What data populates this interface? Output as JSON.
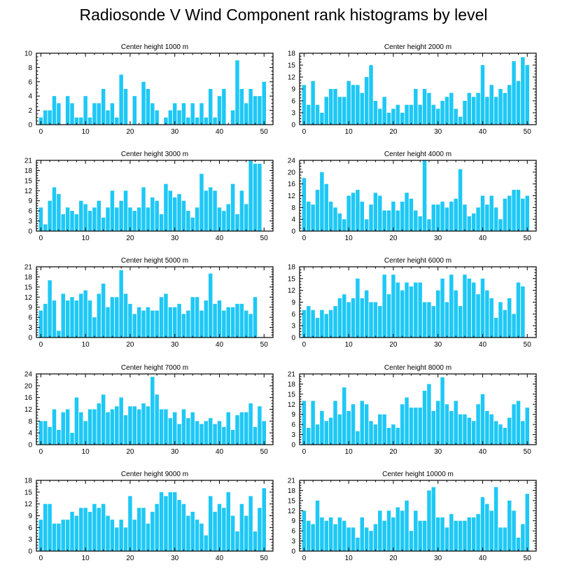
{
  "figure": {
    "title": "Radiosonde V Wind Component rank histograms by level",
    "bar_color": "#1ec8f5",
    "outline_color": "#000000"
  },
  "chart_data": [
    {
      "type": "bar",
      "title": "Center height 1000 m",
      "xlim": [
        -1,
        52
      ],
      "ylim": [
        0,
        10
      ],
      "yticks": [
        0,
        2,
        4,
        6,
        8,
        10
      ],
      "xticks": [
        0,
        10,
        20,
        30,
        40,
        50
      ],
      "values": [
        1,
        2,
        2,
        4,
        3,
        0,
        4,
        3,
        1,
        1,
        4,
        1,
        3,
        3,
        5,
        2,
        3,
        1,
        7,
        5,
        0,
        4,
        0,
        6,
        5,
        3,
        2,
        0,
        1,
        2,
        3,
        2,
        3,
        1,
        3,
        1,
        3,
        1,
        5,
        1,
        4,
        5,
        0,
        2,
        9,
        5,
        3,
        5,
        4,
        4,
        6
      ]
    },
    {
      "type": "bar",
      "title": "Center height 2000 m",
      "xlim": [
        -1,
        52
      ],
      "ylim": [
        0,
        18
      ],
      "yticks": [
        0,
        3,
        6,
        9,
        12,
        15,
        18
      ],
      "xticks": [
        0,
        10,
        20,
        30,
        40,
        50
      ],
      "values": [
        10,
        5,
        11,
        5,
        3,
        7,
        9,
        9,
        7,
        7,
        11,
        10,
        10,
        8,
        12,
        15,
        6,
        4,
        7,
        3,
        4,
        5,
        3,
        5,
        5,
        9,
        5,
        9,
        8,
        5,
        4,
        6,
        7,
        8,
        4,
        2,
        6,
        8,
        7,
        8,
        15,
        7,
        10,
        7,
        9,
        8,
        10,
        16,
        11,
        17,
        15
      ]
    },
    {
      "type": "bar",
      "title": "Center height 3000 m",
      "xlim": [
        -1,
        52
      ],
      "ylim": [
        0,
        21
      ],
      "yticks": [
        0,
        3,
        6,
        9,
        12,
        15,
        18,
        21
      ],
      "xticks": [
        0,
        10,
        20,
        30,
        40,
        50
      ],
      "values": [
        7,
        2,
        9,
        13,
        11,
        5,
        7,
        6,
        5,
        9,
        8,
        6,
        7,
        9,
        4,
        7,
        12,
        7,
        9,
        12,
        7,
        6,
        7,
        13,
        7,
        10,
        9,
        5,
        14,
        12,
        10,
        11,
        9,
        6,
        4,
        7,
        17,
        12,
        13,
        12,
        7,
        6,
        8,
        14,
        5,
        12,
        8,
        21,
        20,
        20,
        0
      ]
    },
    {
      "type": "bar",
      "title": "Center height 4000 m",
      "xlim": [
        -1,
        52
      ],
      "ylim": [
        0,
        24
      ],
      "yticks": [
        0,
        4,
        8,
        12,
        16,
        20,
        24
      ],
      "xticks": [
        0,
        10,
        20,
        30,
        40,
        50
      ],
      "values": [
        18,
        10,
        9,
        14,
        20,
        16,
        10,
        8,
        6,
        4,
        12,
        13,
        14,
        10,
        4,
        9,
        13,
        12,
        7,
        7,
        10,
        7,
        10,
        13,
        11,
        7,
        5,
        24,
        4,
        9,
        9,
        10,
        8,
        10,
        11,
        21,
        9,
        5,
        6,
        8,
        12,
        9,
        12,
        8,
        4,
        11,
        12,
        14,
        14,
        11,
        12
      ]
    },
    {
      "type": "bar",
      "title": "Center height 5000 m",
      "xlim": [
        -1,
        52
      ],
      "ylim": [
        0,
        21
      ],
      "yticks": [
        0,
        3,
        6,
        9,
        12,
        15,
        18,
        21
      ],
      "xticks": [
        0,
        10,
        20,
        30,
        40,
        50
      ],
      "values": [
        8,
        10,
        17,
        11,
        2,
        13,
        11,
        12,
        11,
        13,
        14,
        11,
        6,
        13,
        16,
        9,
        12,
        12,
        20,
        13,
        10,
        7,
        9,
        8,
        9,
        8,
        8,
        12,
        13,
        9,
        9,
        10,
        7,
        8,
        12,
        12,
        8,
        11,
        19,
        10,
        11,
        8,
        9,
        9,
        10,
        10,
        8,
        7,
        12,
        0,
        0
      ]
    },
    {
      "type": "bar",
      "title": "Center height 6000 m",
      "xlim": [
        -1,
        52
      ],
      "ylim": [
        0,
        18
      ],
      "yticks": [
        0,
        3,
        6,
        9,
        12,
        15,
        18
      ],
      "xticks": [
        0,
        10,
        20,
        30,
        40,
        50
      ],
      "values": [
        7,
        8,
        7,
        5,
        7,
        6,
        7,
        8,
        10,
        11,
        9,
        10,
        15,
        10,
        12,
        9,
        9,
        8,
        16,
        11,
        16,
        14,
        12,
        14,
        13,
        14,
        14,
        9,
        9,
        8,
        12,
        15,
        9,
        16,
        12,
        8,
        16,
        15,
        14,
        11,
        15,
        12,
        10,
        5,
        9,
        7,
        10,
        6,
        14,
        13,
        0
      ]
    },
    {
      "type": "bar",
      "title": "Center height 7000 m",
      "xlim": [
        -1,
        52
      ],
      "ylim": [
        0,
        24
      ],
      "yticks": [
        0,
        4,
        8,
        12,
        16,
        20,
        24
      ],
      "xticks": [
        0,
        10,
        20,
        30,
        40,
        50
      ],
      "values": [
        8,
        8,
        6,
        12,
        5,
        11,
        12,
        4,
        16,
        11,
        8,
        12,
        12,
        14,
        17,
        11,
        12,
        13,
        16,
        10,
        13,
        13,
        12,
        14,
        13,
        23,
        17,
        12,
        12,
        9,
        11,
        7,
        12,
        9,
        11,
        8,
        7,
        8,
        9,
        7,
        8,
        6,
        11,
        5,
        10,
        11,
        11,
        14,
        6,
        13,
        8
      ]
    },
    {
      "type": "bar",
      "title": "Center height 8000 m",
      "xlim": [
        -1,
        52
      ],
      "ylim": [
        0,
        21
      ],
      "yticks": [
        0,
        3,
        6,
        9,
        12,
        15,
        18,
        21
      ],
      "xticks": [
        0,
        10,
        20,
        30,
        40,
        50
      ],
      "values": [
        13,
        5,
        13,
        6,
        10,
        7,
        8,
        13,
        9,
        17,
        10,
        12,
        4,
        13,
        12,
        7,
        6,
        9,
        9,
        5,
        6,
        5,
        12,
        14,
        11,
        11,
        11,
        16,
        18,
        10,
        13,
        20,
        12,
        10,
        13,
        9,
        9,
        8,
        7,
        12,
        15,
        10,
        9,
        7,
        6,
        5,
        8,
        12,
        13,
        7,
        11
      ]
    },
    {
      "type": "bar",
      "title": "Center height 9000 m",
      "xlim": [
        -1,
        52
      ],
      "ylim": [
        0,
        18
      ],
      "yticks": [
        0,
        3,
        6,
        9,
        12,
        15,
        18
      ],
      "xticks": [
        0,
        10,
        20,
        30,
        40,
        50
      ],
      "values": [
        8,
        12,
        12,
        7,
        7,
        8,
        8,
        10,
        9,
        11,
        11,
        10,
        12,
        11,
        12,
        9,
        8,
        6,
        8,
        6,
        14,
        8,
        11,
        11,
        7,
        10,
        12,
        15,
        14,
        15,
        15,
        13,
        12,
        9,
        10,
        8,
        7,
        4,
        14,
        10,
        12,
        11,
        15,
        9,
        5,
        12,
        9,
        14,
        5,
        11,
        16
      ]
    },
    {
      "type": "bar",
      "title": "Center height 10000 m",
      "xlim": [
        -1,
        52
      ],
      "ylim": [
        0,
        21
      ],
      "yticks": [
        0,
        3,
        6,
        9,
        12,
        15,
        18,
        21
      ],
      "xticks": [
        0,
        10,
        20,
        30,
        40,
        50
      ],
      "values": [
        12,
        9,
        8,
        15,
        10,
        9,
        10,
        8,
        10,
        9,
        7,
        7,
        4,
        10,
        7,
        6,
        8,
        12,
        9,
        12,
        10,
        13,
        12,
        15,
        6,
        12,
        9,
        9,
        18,
        19,
        10,
        10,
        7,
        11,
        9,
        9,
        9,
        10,
        10,
        11,
        16,
        14,
        12,
        19,
        7,
        7,
        15,
        12,
        4,
        8,
        17
      ]
    }
  ]
}
